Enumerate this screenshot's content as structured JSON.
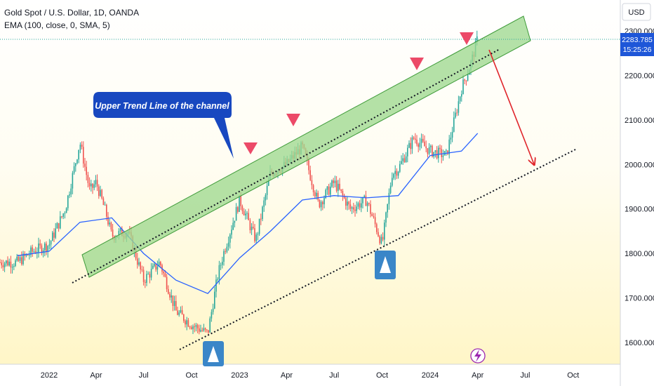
{
  "header": {
    "symbol_title": "Gold Spot / U.S. Dollar, 1D, OANDA",
    "indicator": "EMA (100, close, 0, SMA, 5)"
  },
  "currency": "USD",
  "price_tag": {
    "price": "2283.785",
    "countdown": "15:25:26"
  },
  "annotation": {
    "callout_text": "Upper Trend Line of the channel"
  },
  "colors": {
    "bullish": "#26a69a",
    "bearish": "#ef5350",
    "ema": "#2962ff",
    "channel_fill": "#9fd88f",
    "channel_stroke": "#3f9b3a",
    "callout_bg": "#1848c0",
    "arrow_down": "#ec4a68",
    "arrow_up_bg": "#3a86c8",
    "forecast_arrow": "#e0242a",
    "bg_top": "#ffffff",
    "bg_bottom": "#fff6c7"
  },
  "icons": {
    "lightning_icon": "lightning-bolt",
    "down_marker": "down-triangle",
    "up_marker": "up-triangle"
  },
  "chart_data": {
    "type": "candlestick",
    "title": "Gold Spot / U.S. Dollar, 1D, OANDA",
    "ylim": [
      1560,
      2330
    ],
    "y_ticks": [
      "1600.000",
      "1700.000",
      "1800.000",
      "1900.000",
      "2000.000",
      "2100.000",
      "2200.000",
      "2300.000"
    ],
    "x_ticks": [
      "2022",
      "Apr",
      "Jul",
      "Oct",
      "2023",
      "Apr",
      "Jul",
      "Oct",
      "2024",
      "Apr",
      "Jul",
      "Oct"
    ],
    "price_series": [
      {
        "date": "2021-11",
        "close": 1780
      },
      {
        "date": "2021-12",
        "close": 1805
      },
      {
        "date": "2022-01",
        "close": 1820
      },
      {
        "date": "2022-02",
        "close": 1900
      },
      {
        "date": "2022-03",
        "close": 2050
      },
      {
        "date": "2022-03-20",
        "close": 1940
      },
      {
        "date": "2022-04",
        "close": 1960
      },
      {
        "date": "2022-04-20",
        "close": 1890
      },
      {
        "date": "2022-05",
        "close": 1840
      },
      {
        "date": "2022-06",
        "close": 1850
      },
      {
        "date": "2022-07",
        "close": 1740
      },
      {
        "date": "2022-08",
        "close": 1780
      },
      {
        "date": "2022-09",
        "close": 1670
      },
      {
        "date": "2022-10",
        "close": 1640
      },
      {
        "date": "2022-11",
        "close": 1620
      },
      {
        "date": "2022-11-20",
        "close": 1750
      },
      {
        "date": "2022-12",
        "close": 1800
      },
      {
        "date": "2023-01",
        "close": 1920
      },
      {
        "date": "2023-02",
        "close": 1830
      },
      {
        "date": "2023-03",
        "close": 1980
      },
      {
        "date": "2023-04",
        "close": 2000
      },
      {
        "date": "2023-05",
        "close": 2040
      },
      {
        "date": "2023-05-20",
        "close": 1960
      },
      {
        "date": "2023-06",
        "close": 1910
      },
      {
        "date": "2023-07",
        "close": 1960
      },
      {
        "date": "2023-08",
        "close": 1900
      },
      {
        "date": "2023-09",
        "close": 1920
      },
      {
        "date": "2023-10",
        "close": 1820
      },
      {
        "date": "2023-10-20",
        "close": 1980
      },
      {
        "date": "2023-11",
        "close": 1990
      },
      {
        "date": "2023-12",
        "close": 2060
      },
      {
        "date": "2024-01",
        "close": 2030
      },
      {
        "date": "2024-02",
        "close": 2020
      },
      {
        "date": "2024-03",
        "close": 2170
      },
      {
        "date": "2024-03-20",
        "close": 2230
      },
      {
        "date": "2024-04",
        "close": 2283.785
      }
    ],
    "ema": {
      "name": "EMA (100, close, 0, SMA, 5)",
      "values": [
        {
          "date": "2021-11",
          "value": 1795
        },
        {
          "date": "2022-01",
          "value": 1805
        },
        {
          "date": "2022-03",
          "value": 1870
        },
        {
          "date": "2022-05",
          "value": 1880
        },
        {
          "date": "2022-07",
          "value": 1800
        },
        {
          "date": "2022-09",
          "value": 1740
        },
        {
          "date": "2022-11",
          "value": 1710
        },
        {
          "date": "2023-01",
          "value": 1790
        },
        {
          "date": "2023-03",
          "value": 1850
        },
        {
          "date": "2023-05",
          "value": 1920
        },
        {
          "date": "2023-07",
          "value": 1930
        },
        {
          "date": "2023-09",
          "value": 1925
        },
        {
          "date": "2023-11",
          "value": 1930
        },
        {
          "date": "2024-01",
          "value": 2020
        },
        {
          "date": "2024-03",
          "value": 2030
        },
        {
          "date": "2024-04",
          "value": 2070
        }
      ]
    },
    "last_price": 2283.785,
    "legend": "top-left",
    "grid": false
  }
}
